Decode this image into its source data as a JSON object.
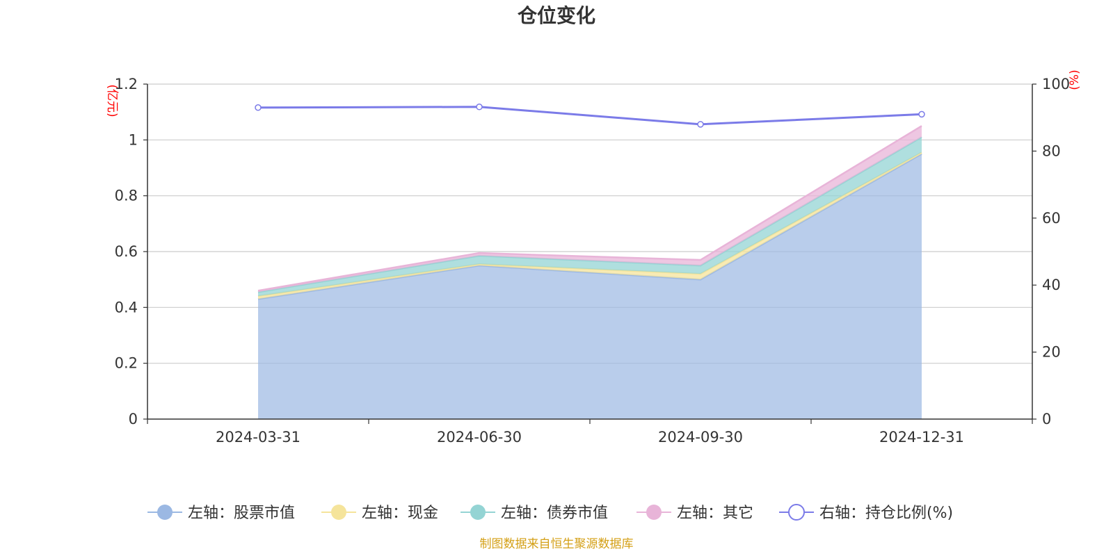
{
  "chart_data": {
    "type": "area",
    "title": "仓位变化",
    "categories": [
      "2024-03-31",
      "2024-06-30",
      "2024-09-30",
      "2024-12-31"
    ],
    "stacked": true,
    "series": [
      {
        "name": "左轴：股票市值",
        "axis": "left",
        "color": "#9bb8e3",
        "values": [
          0.43,
          0.55,
          0.5,
          0.95
        ]
      },
      {
        "name": "左轴：现金",
        "axis": "left",
        "color": "#f5e49b",
        "values": [
          0.01,
          0.005,
          0.02,
          0.005
        ]
      },
      {
        "name": "左轴：债券市值",
        "axis": "left",
        "color": "#94d4d4",
        "values": [
          0.015,
          0.03,
          0.03,
          0.055
        ]
      },
      {
        "name": "左轴：其它",
        "axis": "left",
        "color": "#e8b4d8",
        "values": [
          0.005,
          0.01,
          0.02,
          0.04
        ]
      },
      {
        "name": "右轴：持仓比例(%)",
        "axis": "right",
        "type": "line",
        "color": "#7b7be8",
        "values": [
          93.0,
          93.2,
          88.0,
          91.0
        ]
      }
    ],
    "left_axis": {
      "unit": "(亿元)",
      "range": [
        0,
        1.2
      ],
      "ticks": [
        "0",
        "0.2",
        "0.4",
        "0.6",
        "0.8",
        "1",
        "1.2"
      ],
      "tick_values": [
        0,
        0.2,
        0.4,
        0.6,
        0.8,
        1.0,
        1.2
      ]
    },
    "right_axis": {
      "unit": "(%)",
      "range": [
        0,
        100
      ],
      "ticks": [
        "0",
        "20",
        "40",
        "60",
        "80",
        "100"
      ],
      "tick_values": [
        0,
        20,
        40,
        60,
        80,
        100
      ]
    },
    "grid": true,
    "legend": "bottom",
    "source": "制图数据来自恒生聚源数据库"
  }
}
